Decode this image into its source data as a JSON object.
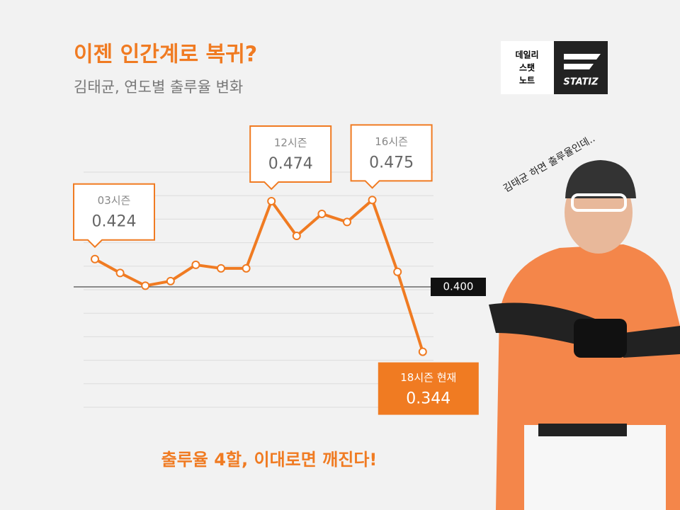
{
  "header": {
    "title": "이젠 인간계로 복귀?",
    "subtitle": "김태균, 연도별 출루율 변화"
  },
  "logo": {
    "lines": [
      "데일리",
      "스탯",
      "노트"
    ],
    "brand": "STATIZ"
  },
  "note": "김태균 하면 출루율인데..",
  "footer": "출루율 4할, 이대로면 깨진다!",
  "chart_data": {
    "type": "line",
    "categories": [
      "03시즌",
      null,
      null,
      null,
      null,
      null,
      null,
      "12시즌",
      null,
      null,
      null,
      "16시즌",
      null,
      "18시즌 현재"
    ],
    "values": [
      0.424,
      0.412,
      0.401,
      0.405,
      0.419,
      0.416,
      0.416,
      0.474,
      0.444,
      0.463,
      0.456,
      0.475,
      0.413,
      0.344
    ],
    "color": "#f07b22",
    "ylim": [
      0.293,
      0.507
    ],
    "reference": {
      "value": 0.4,
      "label": "0.400"
    },
    "grid": true
  }
}
